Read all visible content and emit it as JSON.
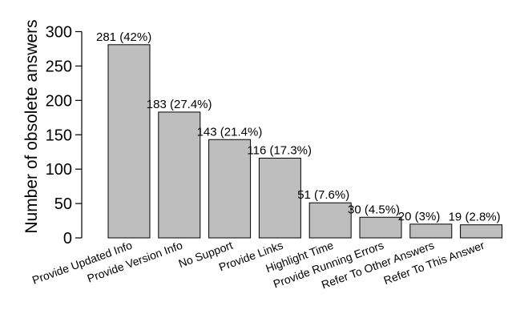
{
  "chart_data": {
    "type": "bar",
    "title": "",
    "xlabel": "",
    "ylabel": "Number of obsolete answers",
    "ylim": [
      0,
      300
    ],
    "yticks": [
      0,
      50,
      100,
      150,
      200,
      250,
      300
    ],
    "grid": false,
    "categories": [
      "Provide Updated Info",
      "Provide Version Info",
      "No Support",
      "Provide Links",
      "Highlight Time",
      "Provide Running Errors",
      "Refer To Other Answers",
      "Refer To This Answer"
    ],
    "values": [
      281,
      183,
      143,
      116,
      51,
      30,
      20,
      19
    ],
    "data_labels": [
      "281 (42%)",
      "183 (27.4%)",
      "143 (21.4%)",
      "116 (17.3%)",
      "51 (7.6%)",
      "30 (4.5%)",
      "20 (3%)",
      "19 (2.8%)"
    ],
    "colors": {
      "bar_fill": "#bebebe",
      "bar_stroke": "#000000",
      "axis": "#000000"
    }
  }
}
